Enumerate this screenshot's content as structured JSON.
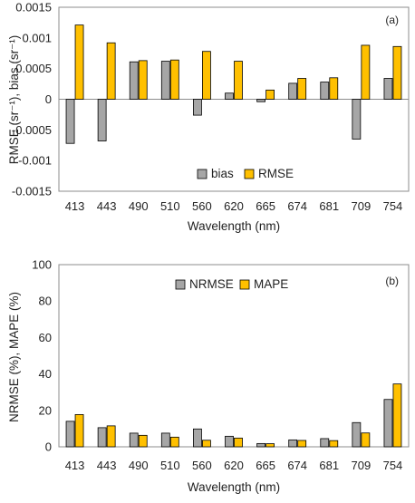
{
  "colors": {
    "bias": "#a6a6a6",
    "rmse": "#ffc000",
    "nrmse": "#a6a6a6",
    "mape": "#ffc000",
    "outline": "#000000",
    "axis": "#8c8c8c",
    "grid": "#d9d9d9"
  },
  "chart_data": [
    {
      "type": "bar",
      "panel_label": "(a)",
      "categories": [
        "413",
        "443",
        "490",
        "510",
        "560",
        "620",
        "665",
        "674",
        "681",
        "709",
        "754"
      ],
      "series": [
        {
          "name": "bias",
          "values": [
            -0.00072,
            -0.00068,
            0.00061,
            0.00062,
            -0.00026,
            0.0001,
            -4e-05,
            0.00026,
            0.00028,
            -0.00065,
            0.00034
          ]
        },
        {
          "name": "RMSE",
          "values": [
            0.00121,
            0.00092,
            0.00063,
            0.00064,
            0.00078,
            0.00062,
            0.00015,
            0.00034,
            0.00035,
            0.00088,
            0.00086
          ]
        }
      ],
      "xlabel": "Wavelength (nm)",
      "ylabel": "RMSE (sr⁻¹), bias (sr⁻¹)",
      "ylim": [
        -0.0015,
        0.0015
      ],
      "yticks": [
        -0.0015,
        -0.001,
        -0.0005,
        0,
        0.0005,
        0.001,
        0.0015
      ],
      "ytick_labels": [
        "-0.0015",
        "-0.001",
        "-0.0005",
        "0",
        "0.0005",
        "0.001",
        "0.0015"
      ],
      "grid": false,
      "legend_position": "bottom-center"
    },
    {
      "type": "bar",
      "panel_label": "(b)",
      "categories": [
        "413",
        "443",
        "490",
        "510",
        "560",
        "620",
        "665",
        "674",
        "681",
        "709",
        "754"
      ],
      "series": [
        {
          "name": "NRMSE",
          "values": [
            14,
            10.5,
            7.5,
            7.5,
            9.8,
            5.8,
            1.8,
            3.8,
            4.5,
            13.3,
            26
          ]
        },
        {
          "name": "MAPE",
          "values": [
            17.7,
            11.5,
            6.3,
            5.3,
            3.6,
            4.8,
            1.7,
            3.5,
            3.4,
            7.6,
            34.5
          ]
        }
      ],
      "xlabel": "Wavelength (nm)",
      "ylabel": "NRMSE (%), MAPE (%)",
      "ylim": [
        0,
        100
      ],
      "yticks": [
        0,
        20,
        40,
        60,
        80,
        100
      ],
      "ytick_labels": [
        "0",
        "20",
        "40",
        "60",
        "80",
        "100"
      ],
      "grid": false,
      "legend_position": "top-center"
    }
  ]
}
